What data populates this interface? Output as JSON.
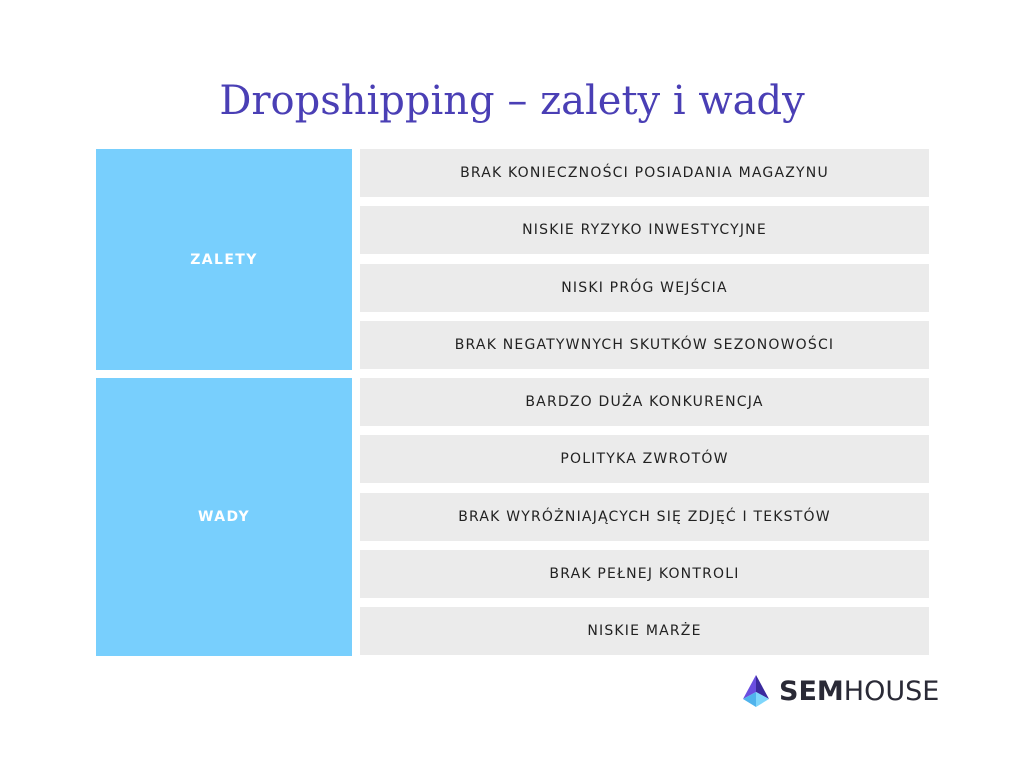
{
  "title": "Dropshipping – zalety i wady",
  "groups": [
    {
      "label": "ZALETY",
      "items": [
        "BRAK KONIECZNOŚCI POSIADANIA MAGAZYNU",
        "NISKIE RYZYKO INWESTYCYJNE",
        "NISKI PRÓG WEJŚCIA",
        "BRAK NEGATYWNYCH SKUTKÓW SEZONOWOŚCI"
      ]
    },
    {
      "label": "WADY",
      "items": [
        "BARDZO DUŻA KONKURENCJA",
        "POLITYKA ZWROTÓW",
        "BRAK WYRÓŻNIAJĄCYCH SIĘ ZDJĘĆ I TEKSTÓW",
        "BRAK PEŁNEJ KONTROLI",
        "NISKIE MARŻE"
      ]
    }
  ],
  "logo": {
    "bold_part": "SEM",
    "regular_part": "HOUSE",
    "icon": "semhouse-logo-icon"
  },
  "colors": {
    "title": "#4a3fb5",
    "group_bg": "#78cffd",
    "item_bg": "#ebebeb",
    "logo_purple": "#5b3fd1",
    "logo_cyan": "#5fc8f5"
  }
}
